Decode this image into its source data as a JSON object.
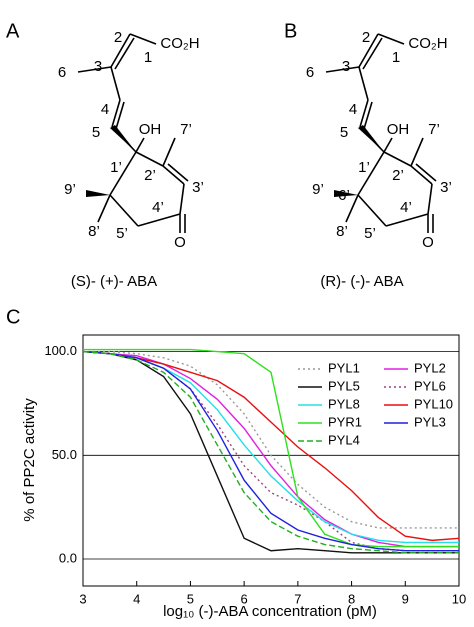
{
  "structures": [
    {
      "panel": "A",
      "name": "(S)- (+)- ABA",
      "highlight_color": "#1a1aff",
      "atoms": [
        "2",
        "CO₂H",
        "1",
        "6",
        "3",
        "4",
        "5",
        "OH",
        "7’",
        "1’",
        "2’",
        "3’",
        "9’",
        "4’",
        "8’",
        "5’",
        "O"
      ]
    },
    {
      "panel": "B",
      "name": "(R)- (-)- ABA",
      "highlight_color": "#e01010",
      "atoms": [
        "2",
        "CO₂H",
        "1",
        "6",
        "3",
        "4",
        "5",
        "OH",
        "7’",
        "1’",
        "2’",
        "3’",
        "9’",
        "4’",
        "8’",
        "5’",
        "O",
        "6’"
      ]
    }
  ],
  "chart_data": {
    "type": "line",
    "panel": "C",
    "xlabel": "log₁₀ (-)-ABA concentration (pM)",
    "ylabel": "% of PP2C activity",
    "x": [
      3,
      3.5,
      4,
      4.5,
      5,
      5.5,
      6,
      6.5,
      7,
      7.5,
      8,
      8.5,
      9,
      9.5,
      10
    ],
    "xlim": [
      3,
      10
    ],
    "xticks": [
      3,
      4,
      5,
      6,
      7,
      8,
      9,
      10
    ],
    "ylim": [
      -13,
      108
    ],
    "yticks": [
      {
        "value": 0,
        "label": "0.0"
      },
      {
        "value": 50,
        "label": "50.0"
      },
      {
        "value": 100,
        "label": "100.0"
      }
    ],
    "grid": true,
    "series": [
      {
        "name": "PYL1",
        "color": "#999999",
        "dash": "dotted",
        "values": [
          100,
          100,
          99,
          97,
          93,
          84,
          70,
          50,
          36,
          25,
          18,
          15,
          15,
          15,
          15
        ]
      },
      {
        "name": "PYL2",
        "color": "#e020e0",
        "dash": "solid",
        "values": [
          100,
          99,
          98,
          94,
          87,
          77,
          63,
          45,
          30,
          19,
          12,
          8,
          6,
          6,
          6
        ]
      },
      {
        "name": "PYL5",
        "color": "#111111",
        "dash": "solid",
        "values": [
          100,
          99,
          96,
          88,
          70,
          40,
          10,
          4,
          5,
          4,
          3,
          3,
          3,
          3,
          3
        ]
      },
      {
        "name": "PYL6",
        "color": "#a0407a",
        "dash": "dotted",
        "values": [
          100,
          99,
          97,
          92,
          82,
          65,
          45,
          32,
          26,
          18,
          8,
          5,
          4,
          4,
          4
        ]
      },
      {
        "name": "PYL8",
        "color": "#20e0e8",
        "dash": "solid",
        "values": [
          100,
          99,
          97,
          92,
          85,
          72,
          55,
          40,
          28,
          18,
          12,
          9,
          8,
          8,
          8
        ]
      },
      {
        "name": "PYL10",
        "color": "#e81010",
        "dash": "solid",
        "values": [
          100,
          99,
          97,
          94,
          90,
          86,
          78,
          66,
          54,
          44,
          33,
          20,
          11,
          9,
          10
        ]
      },
      {
        "name": "PYR1",
        "color": "#30e020",
        "dash": "solid",
        "values": [
          101,
          101,
          101,
          101,
          101,
          100,
          99,
          90,
          30,
          12,
          7,
          6,
          6,
          6,
          6
        ]
      },
      {
        "name": "PYL3",
        "color": "#2020e0",
        "dash": "solid",
        "values": [
          100,
          99,
          97,
          92,
          82,
          62,
          38,
          22,
          14,
          10,
          7,
          5,
          4,
          4,
          4
        ]
      },
      {
        "name": "PYL4",
        "color": "#20b020",
        "dash": "dashed",
        "values": [
          100,
          99,
          96,
          90,
          78,
          55,
          32,
          18,
          11,
          7,
          5,
          4,
          3,
          3,
          3
        ]
      }
    ]
  }
}
